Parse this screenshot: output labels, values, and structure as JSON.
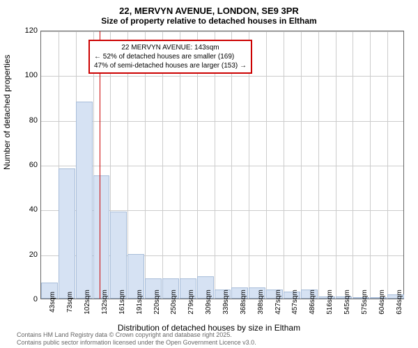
{
  "title_line1": "22, MERVYN AVENUE, LONDON, SE9 3PR",
  "title_line2": "Size of property relative to detached houses in Eltham",
  "ylabel": "Number of detached properties",
  "xlabel": "Distribution of detached houses by size in Eltham",
  "footer_line1": "Contains HM Land Registry data © Crown copyright and database right 2025.",
  "footer_line2": "Contains public sector information licensed under the Open Government Licence v3.0.",
  "annotation": {
    "line1": "22 MERVYN AVENUE: 143sqm",
    "line2": "← 52% of detached houses are smaller (169)",
    "line3": "47% of semi-detached houses are larger (153) →"
  },
  "chart": {
    "type": "bar",
    "ylim": [
      0,
      120
    ],
    "ytick_step": 20,
    "yticks": [
      0,
      20,
      40,
      60,
      80,
      100,
      120
    ],
    "xticks": [
      "43sqm",
      "73sqm",
      "102sqm",
      "132sqm",
      "161sqm",
      "191sqm",
      "220sqm",
      "250sqm",
      "279sqm",
      "309sqm",
      "339sqm",
      "368sqm",
      "398sqm",
      "427sqm",
      "457sqm",
      "486sqm",
      "516sqm",
      "545sqm",
      "575sqm",
      "604sqm",
      "634sqm"
    ],
    "values": [
      7,
      58,
      88,
      55,
      39,
      20,
      9,
      9,
      9,
      10,
      4,
      5,
      5,
      4,
      3,
      4,
      1,
      1,
      0,
      0,
      2
    ],
    "bar_color": "#d6e2f3",
    "bar_border": "#a8bdd9",
    "ref_line_color": "#cc0000",
    "ref_line_value": 143,
    "background_color": "#ffffff",
    "grid_color": "#cccccc",
    "label_fontsize": 12,
    "tick_fontsize": 11
  }
}
